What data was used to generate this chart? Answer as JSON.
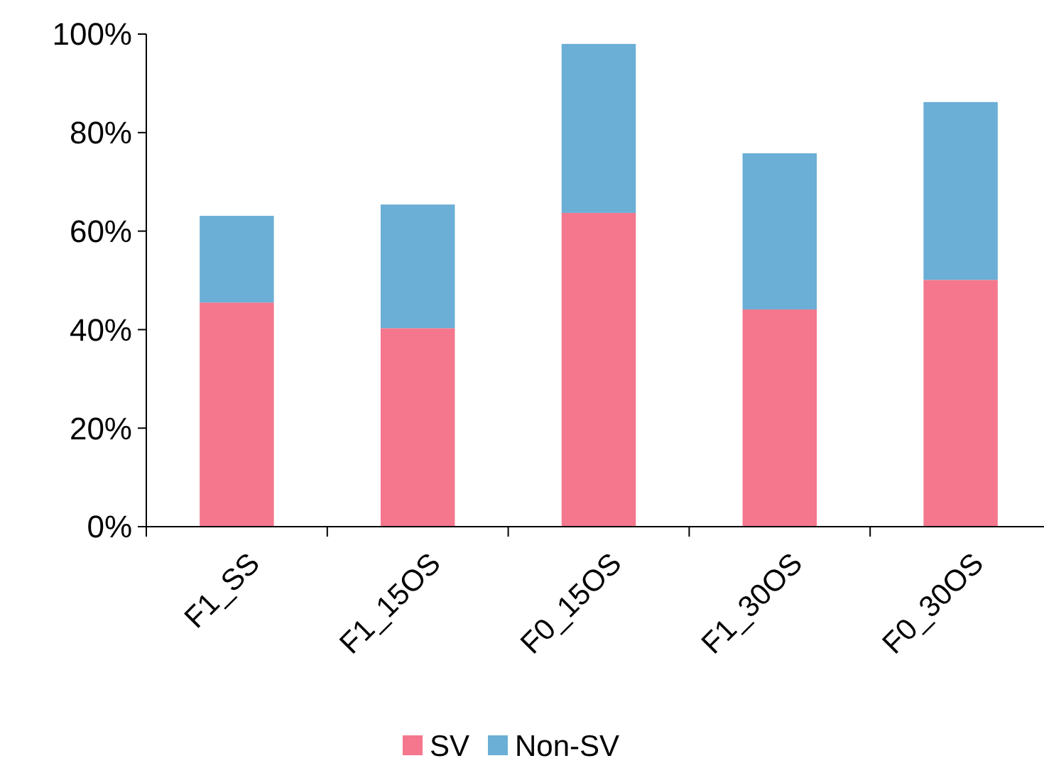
{
  "chart_data": {
    "type": "bar",
    "stacked": true,
    "categories": [
      "F1_SS",
      "F1_15OS",
      "F0_15OS",
      "F1_30OS",
      "F0_30OS"
    ],
    "series": [
      {
        "name": "SV",
        "color": "#f4778d",
        "values": [
          45.5,
          40.3,
          63.7,
          44.1,
          50.1
        ]
      },
      {
        "name": "Non-SV",
        "color": "#6baed6",
        "values": [
          17.6,
          25.1,
          34.3,
          31.7,
          36.1
        ]
      }
    ],
    "ylim": [
      0,
      100
    ],
    "yticks": [
      {
        "value": 0,
        "label": "0%"
      },
      {
        "value": 20,
        "label": "20%"
      },
      {
        "value": 40,
        "label": "40%"
      },
      {
        "value": 60,
        "label": "60%"
      },
      {
        "value": 80,
        "label": "80%"
      },
      {
        "value": 100,
        "label": "100%"
      }
    ],
    "legend": "bottom",
    "grid": false
  }
}
